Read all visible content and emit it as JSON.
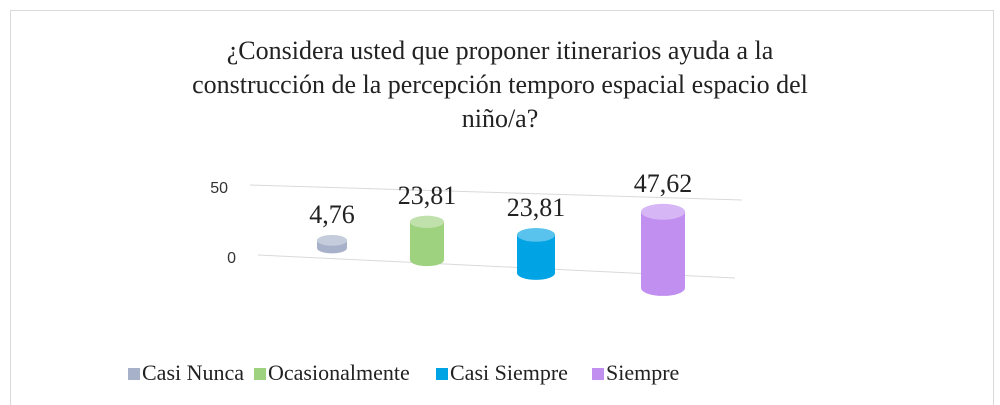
{
  "chart_data": {
    "type": "bar3d",
    "title": "¿Considera usted que proponer itinerarios ayuda a la construcción de la percepción temporo espacial espacio del niño/a?",
    "categories": [
      "Casi Nunca",
      "Ocasionalmente",
      "Casi Siempre",
      "Siempre"
    ],
    "values": [
      4.76,
      23.81,
      23.81,
      47.62
    ],
    "value_labels": [
      "4,76",
      "23,81",
      "23,81",
      "47,62"
    ],
    "colors": [
      "#a7b1c9",
      "#9ed27f",
      "#00a4e4",
      "#c08ff0"
    ],
    "ylim": [
      0,
      50
    ],
    "yticks": [
      0,
      50
    ],
    "grid": true,
    "legend": "bottom"
  }
}
